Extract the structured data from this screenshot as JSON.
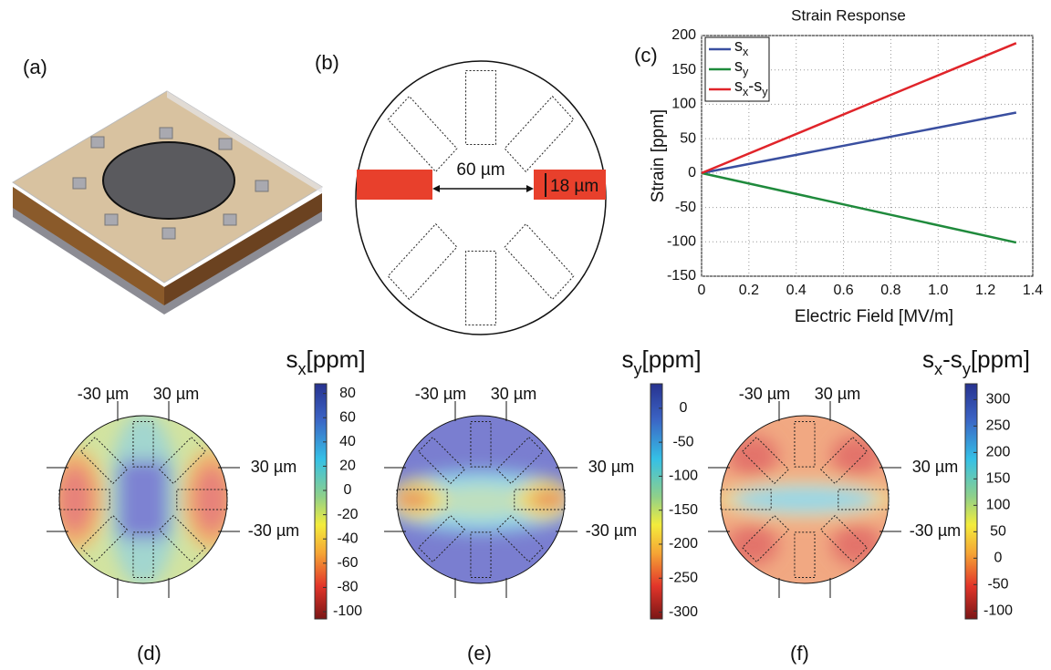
{
  "panel_labels": [
    "(a)",
    "(b)",
    "(c)",
    "(d)",
    "(e)",
    "(f)"
  ],
  "diagram_b": {
    "gap": "60 µm",
    "width": "18 µm"
  },
  "chart_data": {
    "type": "line",
    "title": "Strain Response",
    "x_label": "Electric Field [MV/m]",
    "y_label": "Strain [ppm]",
    "x": [
      0,
      1.33
    ],
    "series": [
      {
        "name": "sx",
        "color": "#3a4fa0",
        "values": [
          0,
          88
        ]
      },
      {
        "name": "sy",
        "color": "#1f8a3c",
        "values": [
          0,
          -101
        ]
      },
      {
        "name": "sx-sy",
        "color": "#e0242a",
        "values": [
          0,
          189
        ]
      }
    ],
    "xlim": [
      0,
      1.4
    ],
    "xticks": [
      0,
      0.2,
      0.4,
      0.6,
      0.8,
      {
        "value": 1,
        "label": "1.0"
      },
      1.2,
      1.4
    ],
    "ylim": [
      -150,
      200
    ],
    "yticks": [
      200,
      150,
      100,
      50,
      0,
      -50,
      -100,
      -150
    ],
    "grid": true,
    "legend": "upper left"
  },
  "maps": [
    {
      "title": "sx[ppm]",
      "clim": [
        -106,
        88
      ],
      "ticks": [
        80,
        60,
        40,
        20,
        0,
        -20,
        -40,
        -60,
        -80,
        -100
      ],
      "x_ticks": [
        "-30 µm",
        "30 µm"
      ],
      "y_ticks": [
        "30 µm",
        "-30 µm"
      ]
    },
    {
      "title": "sy[ppm]",
      "clim": [
        -310,
        36
      ],
      "ticks": [
        0,
        -50,
        -100,
        -150,
        -200,
        -250,
        -300
      ],
      "x_ticks": [
        "-30 µm",
        "30 µm"
      ],
      "y_ticks": [
        "30 µm",
        "-30 µm"
      ]
    },
    {
      "title": "sx-sy[ppm]",
      "clim": [
        -115,
        330
      ],
      "ticks": [
        300,
        250,
        200,
        150,
        100,
        50,
        0,
        -50,
        -100
      ],
      "x_ticks": [
        "-30 µm",
        "30 µm"
      ],
      "y_ticks": [
        "30 µm",
        "-30 µm"
      ]
    }
  ]
}
